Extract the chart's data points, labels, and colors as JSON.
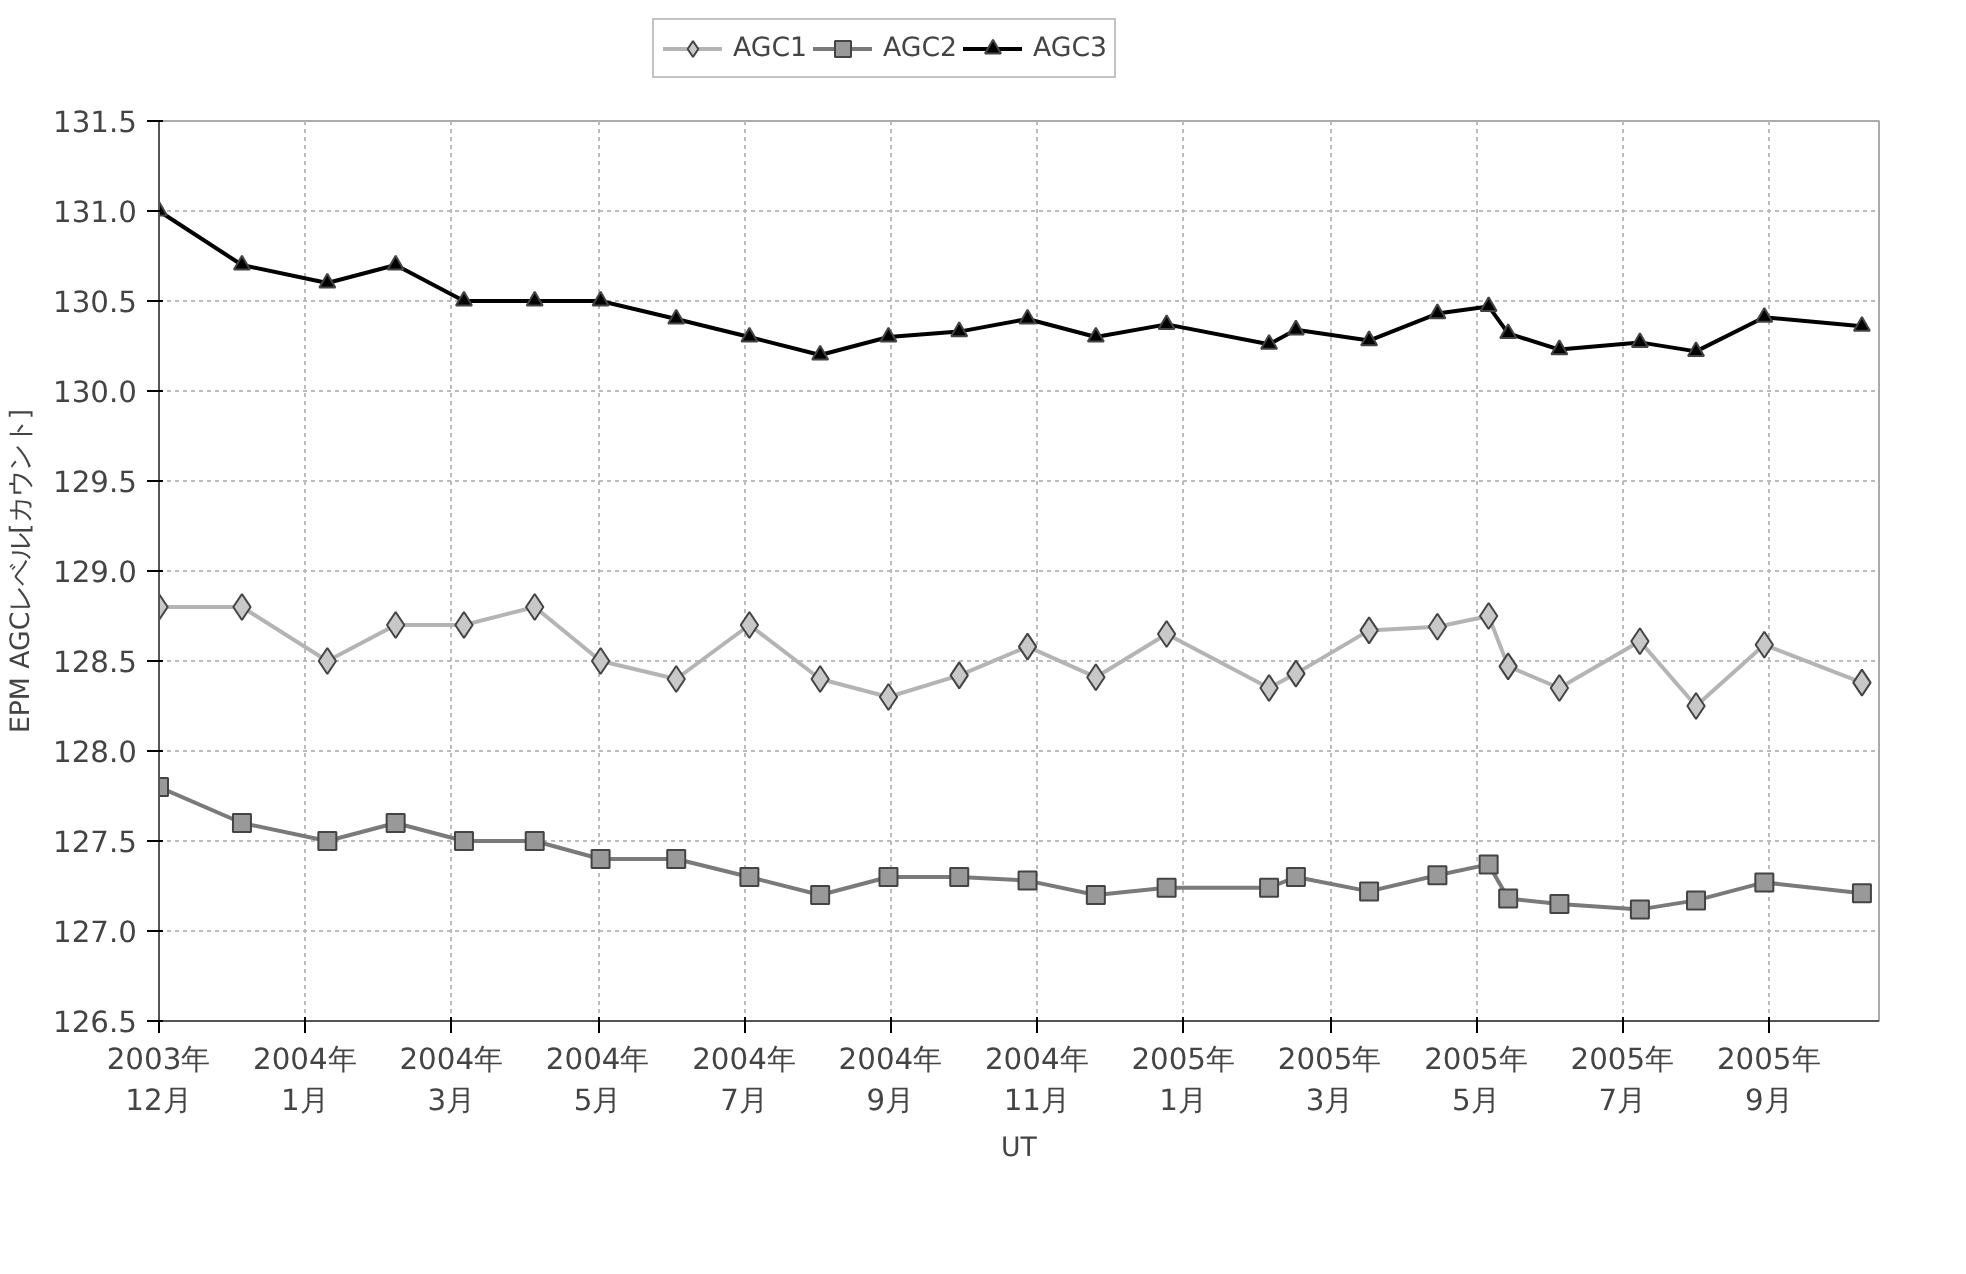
{
  "chart_data": {
    "type": "line",
    "xlabel": "UT",
    "ylabel": "EPM AGCレベル[カウント]",
    "x": [
      "2003-12-01",
      "2004-01-04",
      "2004-02-08",
      "2004-03-07",
      "2004-04-04",
      "2004-05-03",
      "2004-05-30",
      "2004-06-30",
      "2004-07-30",
      "2004-08-28",
      "2004-09-25",
      "2004-10-24",
      "2004-11-21",
      "2004-12-19",
      "2005-01-17",
      "2005-02-28",
      "2005-03-11",
      "2005-04-10",
      "2005-05-08",
      "2005-05-29",
      "2005-06-06",
      "2005-06-27",
      "2005-07-30",
      "2005-08-22",
      "2005-09-19",
      "2005-10-29"
    ],
    "series": [
      {
        "name": "AGC1",
        "color": "#b4b4b4",
        "marker": "diamond",
        "values": [
          128.8,
          128.8,
          128.5,
          128.7,
          128.7,
          128.8,
          128.5,
          128.4,
          128.7,
          128.4,
          128.3,
          128.42,
          128.58,
          128.41,
          128.65,
          128.35,
          128.43,
          128.67,
          128.69,
          128.75,
          128.47,
          128.35,
          128.61,
          128.25,
          128.59,
          128.38
        ]
      },
      {
        "name": "AGC2",
        "color": "#7a7a7a",
        "marker": "square",
        "values": [
          127.8,
          127.6,
          127.5,
          127.6,
          127.5,
          127.5,
          127.4,
          127.4,
          127.3,
          127.2,
          127.3,
          127.3,
          127.28,
          127.2,
          127.24,
          127.24,
          127.3,
          127.22,
          127.31,
          127.37,
          127.18,
          127.15,
          127.12,
          127.17,
          127.27,
          127.21
        ]
      },
      {
        "name": "AGC3",
        "color": "#000000",
        "marker": "triangle",
        "values": [
          131.0,
          130.7,
          130.6,
          130.7,
          130.5,
          130.5,
          130.5,
          130.4,
          130.3,
          130.2,
          130.3,
          130.33,
          130.4,
          130.3,
          130.37,
          130.26,
          130.34,
          130.28,
          130.43,
          130.47,
          130.32,
          130.23,
          130.27,
          130.22,
          130.41,
          130.36
        ]
      }
    ],
    "xlim": [
      "2003-12-01",
      "2005-11-05"
    ],
    "xticks": [
      {
        "value": "2003-12-01",
        "label": "2003年\n12月"
      },
      {
        "value": "2004-01-30",
        "label": "2004年\n1月"
      },
      {
        "value": "2004-03-30",
        "label": "2004年\n3月"
      },
      {
        "value": "2004-05-29",
        "label": "2004年\n5月"
      },
      {
        "value": "2004-07-28",
        "label": "2004年\n7月"
      },
      {
        "value": "2004-09-26",
        "label": "2004年\n9月"
      },
      {
        "value": "2004-11-25",
        "label": "2004年\n11月"
      },
      {
        "value": "2005-01-24",
        "label": "2005年\n1月"
      },
      {
        "value": "2005-03-25",
        "label": "2005年\n3月"
      },
      {
        "value": "2005-05-24",
        "label": "2005年\n5月"
      },
      {
        "value": "2005-07-23",
        "label": "2005年\n7月"
      },
      {
        "value": "2005-09-21",
        "label": "2005年\n9月"
      }
    ],
    "ylim": [
      126.5,
      131.5
    ],
    "yticks": [
      {
        "value": 126.5,
        "label": "126.5"
      },
      {
        "value": 127,
        "label": "127.0"
      },
      {
        "value": 127.5,
        "label": "127.5"
      },
      {
        "value": 128,
        "label": "128.0"
      },
      {
        "value": 128.5,
        "label": "128.5"
      },
      {
        "value": 129,
        "label": "129.0"
      },
      {
        "value": 129.5,
        "label": "129.5"
      },
      {
        "value": 130,
        "label": "130.0"
      },
      {
        "value": 130.5,
        "label": "130.5"
      },
      {
        "value": 131,
        "label": "131.0"
      },
      {
        "value": 131.5,
        "label": "131.5"
      }
    ],
    "grid": true,
    "legend": "top",
    "line_style": "solid"
  }
}
